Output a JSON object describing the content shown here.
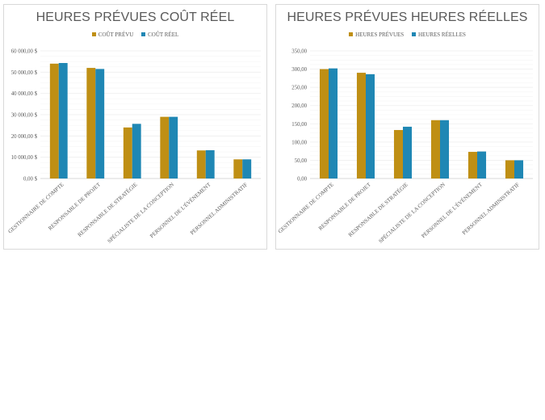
{
  "colors": {
    "series_1": "#bf8f14",
    "series_2": "#1f87b4",
    "grid": "#eeeeee",
    "axis": "#d9d9d9"
  },
  "chart_data": [
    {
      "type": "bar",
      "title": "HEURES PRÉVUES COÛT RÉEL",
      "categories": [
        "GESTIONNAIRE DE COMPTE",
        "RESPONSABLE DE PROJET",
        "RESPONSABLE DE STRATÉGIE",
        "SPÉCIALISTE DE LA CONCEPTION",
        "PERSONNEL DE L'ÉVÉNEMENT",
        "PERSONNEL ADMINISTRATIF"
      ],
      "series": [
        {
          "name": "COÛT PRÉVU",
          "values": [
            54000,
            52000,
            24000,
            29000,
            13200,
            9000
          ]
        },
        {
          "name": "COÛT RÉEL",
          "values": [
            54300,
            51500,
            25700,
            29000,
            13300,
            9000
          ]
        }
      ],
      "ylim": [
        0,
        60000
      ],
      "yticks": [
        "0,00 $",
        "10 000,00 $",
        "20 000,00 $",
        "30 000,00 $",
        "40 000,00 $",
        "50 000,00 $",
        "60 000,00 $"
      ],
      "legend_position": "top",
      "grid": true
    },
    {
      "type": "bar",
      "title": "HEURES PRÉVUES HEURES RÉELLES",
      "categories": [
        "GESTIONNAIRE DE COMPTE",
        "RESPONSABLE DE PROJET",
        "RESPONSABLE DE STRATÉGIE",
        "SPÉCIALISTE DE LA CONCEPTION",
        "PERSONNEL DE L'ÉVÉNEMENT",
        "PERSONNEL ADMINISTRATIF"
      ],
      "series": [
        {
          "name": "HEURES PRÉVUES",
          "values": [
            300,
            290,
            133,
            160,
            73,
            50
          ]
        },
        {
          "name": "HEURES RÉELLES",
          "values": [
            302,
            286,
            142,
            160,
            74,
            50
          ]
        }
      ],
      "ylim": [
        0,
        350
      ],
      "yticks": [
        "0,00",
        "50,00",
        "100,00",
        "150,00",
        "200,00",
        "250,00",
        "300,00",
        "350,00"
      ],
      "legend_position": "top",
      "grid": true
    }
  ]
}
